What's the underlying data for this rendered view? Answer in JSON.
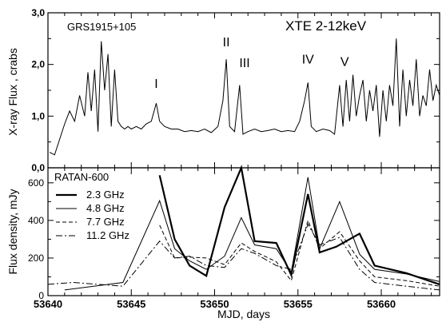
{
  "chart_data": [
    {
      "type": "line",
      "title": "XTE 2-12keV",
      "source_label": "GRS1915+105",
      "xlabel": "",
      "ylabel": "X-ray Flux , crabs",
      "xlim": [
        53640,
        53663.5
      ],
      "ylim": [
        0.0,
        3.0
      ],
      "yticks": [
        "0,0",
        "1,0",
        "2,0",
        "3,0"
      ],
      "flare_labels": [
        {
          "text": "I",
          "x": 53646.5,
          "y": 1.55
        },
        {
          "text": "II",
          "x": 53650.7,
          "y": 2.35
        },
        {
          "text": "III",
          "x": 53651.8,
          "y": 1.95
        },
        {
          "text": "IV",
          "x": 53655.6,
          "y": 2.02
        },
        {
          "text": "V",
          "x": 53657.8,
          "y": 1.97
        }
      ],
      "series": [
        {
          "style": "solid",
          "x": [
            53640.1,
            53640.4,
            53640.7,
            53641.0,
            53641.3,
            53641.6,
            53641.9,
            53642.2,
            53642.4,
            53642.6,
            53642.8,
            53643.0,
            53643.2,
            53643.4,
            53643.6,
            53643.8,
            53644.0,
            53644.2,
            53644.4,
            53644.6,
            53644.8,
            53645.0,
            53645.3,
            53645.6,
            53645.9,
            53646.2,
            53646.5,
            53646.7,
            53647.0,
            53647.4,
            53647.8,
            53648.2,
            53648.6,
            53649.0,
            53649.4,
            53649.8,
            53650.2,
            53650.5,
            53650.7,
            53650.9,
            53651.2,
            53651.5,
            53651.7,
            53652.0,
            53652.4,
            53652.8,
            53653.2,
            53653.6,
            53654.0,
            53654.4,
            53654.8,
            53655.1,
            53655.4,
            53655.6,
            53655.8,
            53656.1,
            53656.5,
            53656.9,
            53657.2,
            53657.5,
            53657.7,
            53657.9,
            53658.1,
            53658.3,
            53658.5,
            53658.7,
            53658.9,
            53659.1,
            53659.3,
            53659.5,
            53659.7,
            53659.9,
            53660.1,
            53660.3,
            53660.5,
            53660.7,
            53660.9,
            53661.1,
            53661.3,
            53661.5,
            53661.7,
            53661.9,
            53662.1,
            53662.3,
            53662.5,
            53662.7,
            53662.9,
            53663.1,
            53663.3,
            53663.5
          ],
          "y": [
            0.3,
            0.25,
            0.55,
            0.85,
            1.1,
            0.9,
            1.4,
            1.0,
            1.85,
            1.1,
            1.9,
            0.7,
            2.45,
            1.5,
            2.2,
            0.8,
            1.9,
            0.9,
            0.8,
            0.75,
            0.8,
            0.75,
            0.8,
            0.75,
            0.85,
            0.9,
            1.25,
            0.9,
            0.8,
            0.75,
            0.75,
            0.7,
            0.72,
            0.7,
            0.75,
            0.68,
            0.8,
            1.3,
            2.1,
            0.8,
            0.7,
            1.6,
            0.65,
            0.7,
            0.75,
            0.7,
            0.72,
            0.75,
            0.7,
            0.72,
            0.7,
            0.9,
            1.3,
            1.65,
            0.8,
            0.7,
            0.75,
            0.72,
            0.65,
            1.6,
            0.8,
            1.7,
            0.9,
            1.8,
            1.0,
            1.4,
            1.7,
            0.9,
            1.5,
            1.1,
            1.6,
            0.6,
            1.5,
            0.9,
            1.6,
            1.2,
            2.5,
            0.8,
            1.9,
            1.0,
            1.7,
            1.2,
            2.1,
            1.0,
            1.4,
            1.2,
            1.9,
            1.3,
            1.6,
            1.4
          ]
        }
      ]
    },
    {
      "type": "line",
      "title": "RATAN-600",
      "xlabel": "MJD, days",
      "ylabel": "Flux density, mJy",
      "xlim": [
        53640,
        53663.5
      ],
      "ylim": [
        0,
        680
      ],
      "xticks": [
        53640,
        53645,
        53650,
        53655,
        53660
      ],
      "yticks": [
        0,
        200,
        400,
        600
      ],
      "series": [
        {
          "name": "2.3 GHz",
          "style": "thick",
          "x": [
            53646.7,
            53647.6,
            53648.5,
            53649.5,
            53650.6,
            53651.6,
            53652.4,
            53653.7,
            53654.6,
            53655.6,
            53656.3,
            53657.3,
            53658.7,
            53659.6,
            53661.5,
            53663.5
          ],
          "y": [
            640,
            300,
            160,
            105,
            470,
            680,
            290,
            280,
            110,
            540,
            230,
            260,
            330,
            160,
            120,
            60
          ]
        },
        {
          "name": "4.8 GHz",
          "style": "solid",
          "x": [
            53641.0,
            53644.5,
            53646.7,
            53647.6,
            53648.5,
            53649.5,
            53650.6,
            53651.6,
            53652.4,
            53653.7,
            53654.6,
            53655.6,
            53656.3,
            53657.5,
            53658.7,
            53659.6,
            53661.5,
            53663.5
          ],
          "y": [
            30,
            70,
            505,
            250,
            185,
            140,
            210,
            415,
            270,
            250,
            125,
            630,
            250,
            500,
            220,
            140,
            115,
            75
          ]
        },
        {
          "name": "7.7 GHz",
          "style": "dashed",
          "x": [
            53646.7,
            53647.6,
            53648.5,
            53649.5,
            53650.6,
            53651.6,
            53652.4,
            53653.7,
            53654.6,
            53655.6,
            53656.3,
            53657.5,
            53658.7,
            53659.6,
            53661.5,
            53663.5
          ],
          "y": [
            375,
            200,
            205,
            200,
            165,
            280,
            235,
            180,
            80,
            400,
            250,
            340,
            185,
            100,
            80,
            50
          ]
        },
        {
          "name": "11.2 GHz",
          "style": "dashdot",
          "x": [
            53640.0,
            53641.5,
            53644.5,
            53646.7,
            53647.6,
            53648.5,
            53649.5,
            53650.6,
            53651.6,
            53652.4,
            53653.7,
            53654.6,
            53655.6,
            53656.3,
            53657.5,
            53658.7,
            53659.6,
            53661.5,
            53663.5
          ],
          "y": [
            60,
            70,
            50,
            290,
            200,
            210,
            160,
            150,
            250,
            225,
            160,
            140,
            380,
            270,
            310,
            140,
            70,
            50,
            30
          ]
        }
      ]
    }
  ]
}
